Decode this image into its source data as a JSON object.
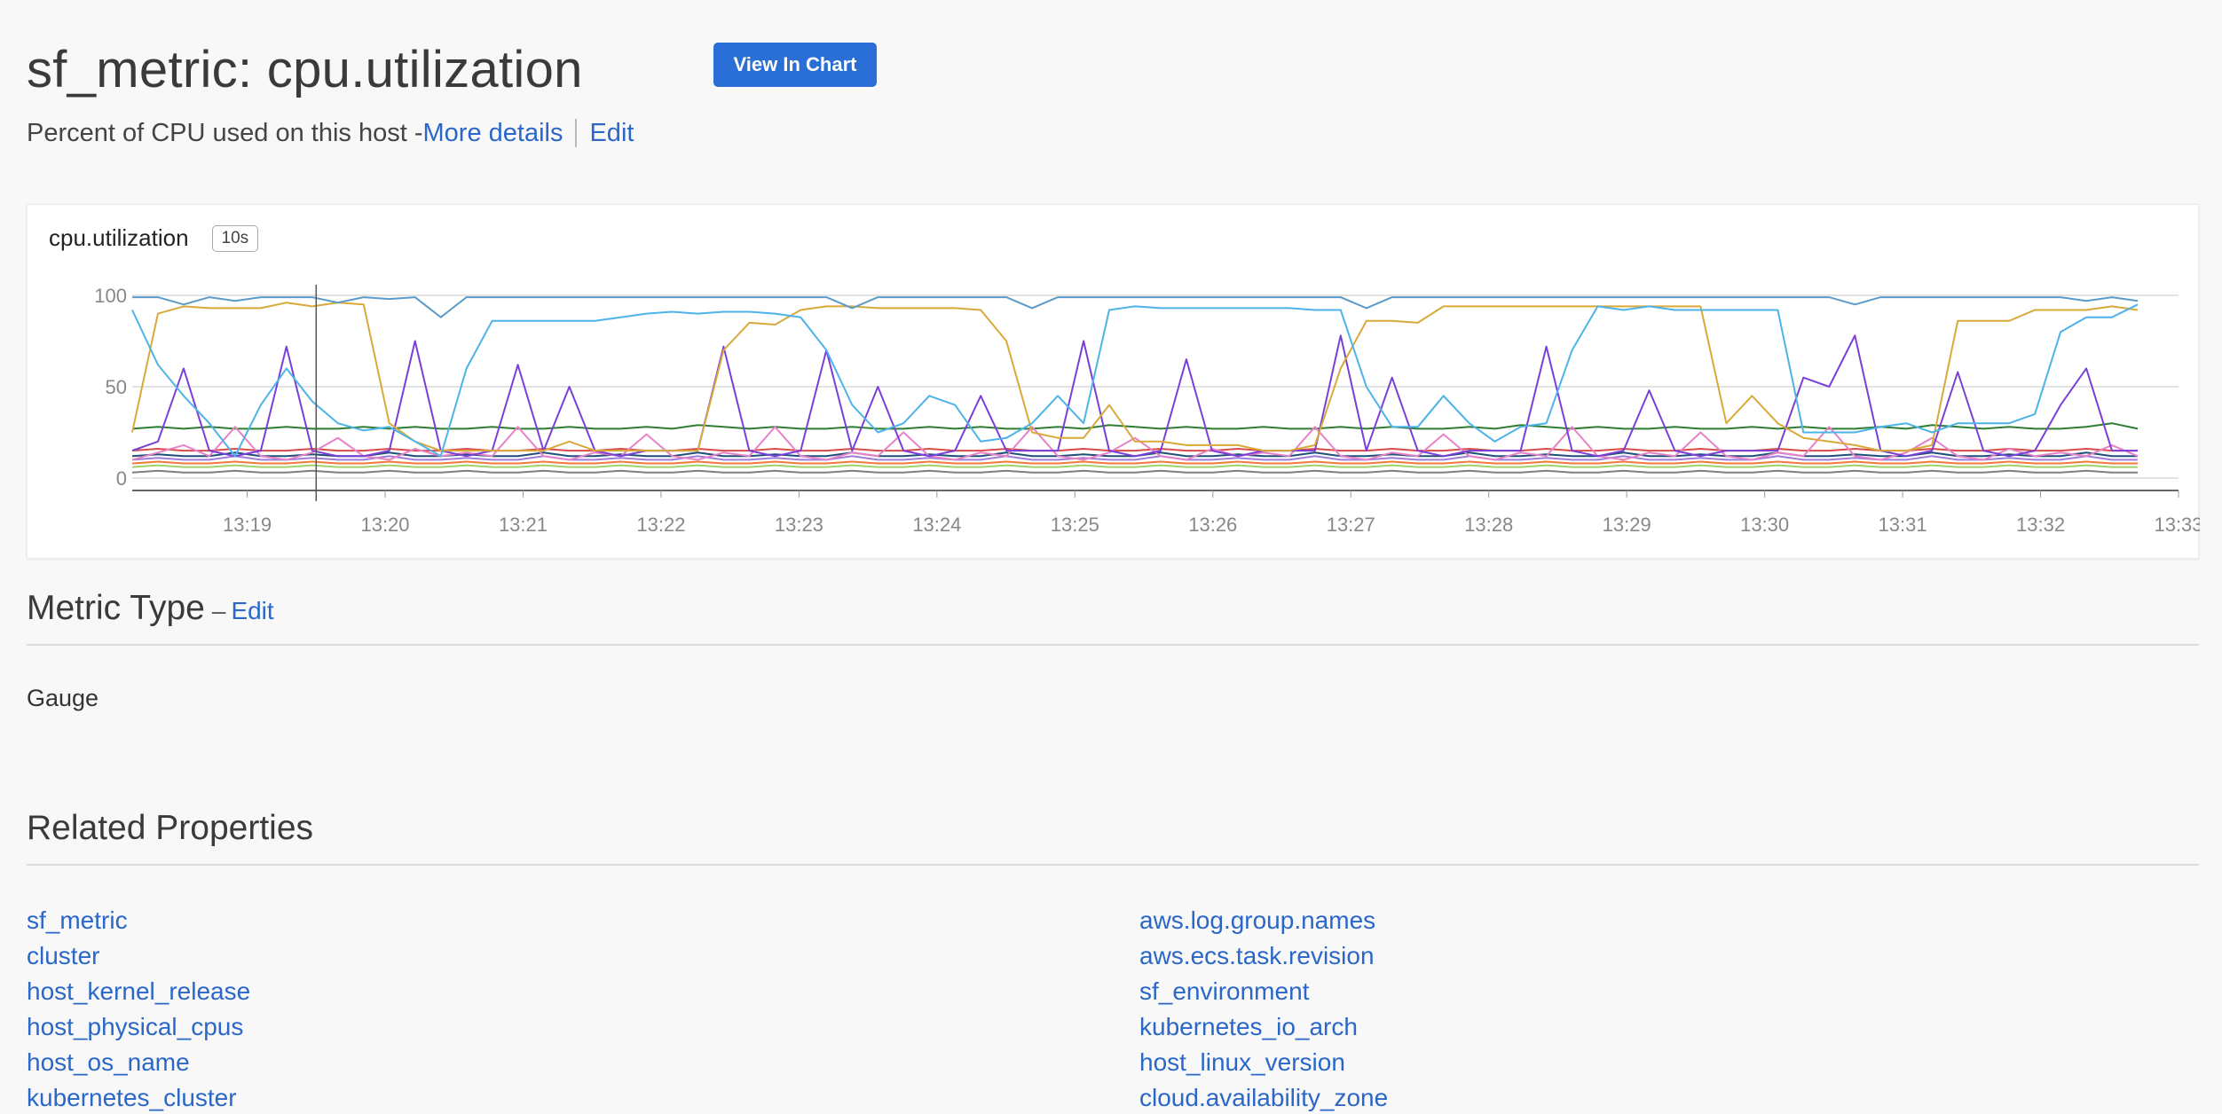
{
  "header": {
    "title": "sf_metric: cpu.utilization",
    "view_in_chart": "View In Chart",
    "description": "Percent of CPU used on this host - ",
    "more_details": "More details",
    "edit": "Edit"
  },
  "chart": {
    "name": "cpu.utilization",
    "resolution": "10s"
  },
  "chart_data": {
    "type": "line",
    "title": "cpu.utilization",
    "ylim": [
      0,
      100
    ],
    "y_ticks": [
      "100",
      "50",
      "0"
    ],
    "x_ticks": [
      "13:19",
      "13:20",
      "13:21",
      "13:22",
      "13:23",
      "13:24",
      "13:25",
      "13:26",
      "13:27",
      "13:28",
      "13:29",
      "13:30",
      "13:31",
      "13:32",
      "13:33"
    ],
    "x_range": [
      "13:18:10",
      "13:33:00"
    ],
    "grid": true,
    "cursor_time": "13:19:30",
    "series_colors": [
      "#4db3e8",
      "#5b9bc9",
      "#d9a93a",
      "#7b3fd9",
      "#e882c8",
      "#2e7d32",
      "#d94b4b",
      "#1f4e79",
      "#a07cd9",
      "#f07a3a",
      "#9fd36b",
      "#7f7f7f"
    ],
    "series": [
      {
        "values": [
          92,
          62,
          45,
          30,
          12,
          40,
          60,
          42,
          30,
          26,
          28,
          20,
          12,
          60,
          86,
          86,
          86,
          86,
          86,
          88,
          90,
          91,
          90,
          91,
          91,
          90,
          88,
          70,
          40,
          25,
          30,
          45,
          40,
          20,
          22,
          30,
          45,
          30,
          92,
          94,
          93,
          93,
          93,
          93,
          93,
          93,
          92,
          92,
          50,
          28,
          28,
          45,
          30,
          20,
          28,
          30,
          70,
          94,
          92,
          94,
          92,
          92,
          92,
          92,
          92,
          25,
          25,
          25,
          28,
          30,
          25,
          30,
          30,
          30,
          35,
          80,
          88,
          88,
          95
        ]
      },
      {
        "values": [
          99,
          99,
          95,
          99,
          97,
          99,
          99,
          99,
          96,
          99,
          98,
          99,
          88,
          99,
          99,
          99,
          99,
          99,
          99,
          99,
          99,
          99,
          99,
          99,
          99,
          99,
          99,
          99,
          93,
          99,
          99,
          99,
          99,
          99,
          99,
          93,
          99,
          99,
          99,
          99,
          99,
          99,
          99,
          99,
          99,
          99,
          99,
          99,
          93,
          99,
          99,
          99,
          99,
          99,
          99,
          99,
          99,
          99,
          99,
          99,
          99,
          99,
          99,
          99,
          99,
          99,
          99,
          95,
          99,
          99,
          99,
          99,
          99,
          99,
          99,
          99,
          97,
          99,
          97
        ]
      },
      {
        "values": [
          25,
          90,
          94,
          93,
          93,
          93,
          96,
          94,
          96,
          95,
          30,
          20,
          15,
          15,
          15,
          15,
          15,
          20,
          15,
          15,
          15,
          15,
          15,
          70,
          85,
          84,
          92,
          94,
          94,
          93,
          93,
          93,
          93,
          92,
          75,
          25,
          22,
          22,
          40,
          20,
          20,
          18,
          18,
          18,
          15,
          15,
          18,
          60,
          86,
          86,
          85,
          94,
          94,
          94,
          94,
          94,
          94,
          94,
          94,
          94,
          94,
          94,
          30,
          45,
          30,
          22,
          20,
          18,
          15,
          15,
          18,
          86,
          86,
          86,
          92,
          92,
          92,
          94,
          92
        ]
      },
      {
        "values": [
          15,
          20,
          60,
          15,
          12,
          15,
          72,
          15,
          12,
          12,
          15,
          75,
          15,
          12,
          15,
          62,
          15,
          50,
          15,
          12,
          15,
          15,
          15,
          72,
          15,
          12,
          15,
          70,
          15,
          50,
          15,
          12,
          15,
          45,
          15,
          15,
          15,
          75,
          15,
          12,
          15,
          65,
          15,
          12,
          15,
          15,
          15,
          78,
          15,
          55,
          15,
          12,
          15,
          15,
          15,
          72,
          15,
          12,
          15,
          48,
          15,
          12,
          15,
          15,
          15,
          55,
          50,
          78,
          15,
          12,
          15,
          58,
          15,
          12,
          15,
          40,
          60,
          15,
          15
        ]
      },
      {
        "values": [
          10,
          14,
          18,
          12,
          28,
          12,
          10,
          14,
          22,
          12,
          10,
          16,
          12,
          14,
          12,
          28,
          12,
          10,
          14,
          12,
          24,
          12,
          10,
          14,
          12,
          28,
          12,
          10,
          14,
          12,
          25,
          12,
          10,
          14,
          12,
          28,
          12,
          10,
          14,
          22,
          12,
          10,
          16,
          12,
          14,
          12,
          28,
          12,
          10,
          14,
          12,
          24,
          12,
          10,
          14,
          12,
          28,
          12,
          10,
          14,
          12,
          25,
          12,
          10,
          14,
          12,
          28,
          12,
          10,
          14,
          22,
          12,
          10,
          16,
          12,
          14,
          12,
          18,
          12
        ]
      },
      {
        "values": [
          27,
          28,
          27,
          28,
          27,
          27,
          28,
          27,
          27,
          28,
          27,
          28,
          27,
          27,
          28,
          27,
          27,
          28,
          27,
          27,
          28,
          27,
          29,
          28,
          27,
          28,
          27,
          27,
          28,
          27,
          27,
          28,
          27,
          28,
          27,
          27,
          28,
          27,
          29,
          28,
          27,
          28,
          27,
          27,
          28,
          27,
          27,
          28,
          27,
          28,
          27,
          27,
          28,
          27,
          29,
          28,
          27,
          28,
          27,
          27,
          28,
          27,
          27,
          28,
          27,
          28,
          27,
          27,
          28,
          27,
          29,
          28,
          27,
          28,
          27,
          27,
          28,
          30,
          27
        ]
      },
      {
        "values": [
          15,
          16,
          15,
          15,
          16,
          15,
          15,
          16,
          15,
          15,
          16,
          15,
          15,
          16,
          15,
          15,
          16,
          15,
          15,
          16,
          15,
          15,
          16,
          15,
          15,
          16,
          15,
          15,
          16,
          15,
          15,
          16,
          15,
          15,
          16,
          15,
          15,
          16,
          15,
          15,
          16,
          15,
          15,
          16,
          15,
          15,
          16,
          15,
          15,
          16,
          15,
          15,
          16,
          15,
          15,
          16,
          15,
          15,
          16,
          15,
          15,
          16,
          15,
          15,
          16,
          15,
          15,
          16,
          15,
          15,
          16,
          15,
          15,
          16,
          15,
          15,
          16,
          15,
          15
        ]
      },
      {
        "values": [
          12,
          13,
          12,
          12,
          14,
          12,
          12,
          13,
          12,
          12,
          14,
          12,
          12,
          13,
          12,
          12,
          14,
          12,
          12,
          13,
          12,
          12,
          14,
          12,
          12,
          13,
          12,
          12,
          14,
          12,
          12,
          13,
          12,
          12,
          14,
          12,
          12,
          13,
          12,
          12,
          14,
          12,
          12,
          13,
          12,
          12,
          14,
          12,
          12,
          13,
          12,
          12,
          14,
          12,
          12,
          13,
          12,
          12,
          14,
          12,
          12,
          13,
          12,
          12,
          14,
          12,
          12,
          13,
          12,
          12,
          14,
          12,
          12,
          13,
          12,
          12,
          14,
          12,
          12
        ]
      },
      {
        "values": [
          10,
          11,
          10,
          10,
          12,
          10,
          10,
          11,
          10,
          10,
          12,
          10,
          10,
          11,
          10,
          10,
          12,
          10,
          10,
          11,
          10,
          10,
          12,
          10,
          10,
          11,
          10,
          10,
          12,
          10,
          10,
          11,
          10,
          10,
          12,
          10,
          10,
          11,
          10,
          10,
          12,
          10,
          10,
          11,
          10,
          10,
          12,
          10,
          10,
          11,
          10,
          10,
          12,
          10,
          10,
          11,
          10,
          10,
          12,
          10,
          10,
          11,
          10,
          10,
          12,
          10,
          10,
          11,
          10,
          10,
          12,
          10,
          10,
          11,
          10,
          10,
          12,
          10,
          10
        ]
      },
      {
        "values": [
          8,
          9,
          8,
          8,
          9,
          8,
          8,
          9,
          8,
          8,
          9,
          8,
          8,
          9,
          8,
          8,
          9,
          8,
          8,
          9,
          8,
          8,
          9,
          8,
          8,
          9,
          8,
          8,
          9,
          8,
          8,
          9,
          8,
          8,
          9,
          8,
          8,
          9,
          8,
          8,
          9,
          8,
          8,
          9,
          8,
          8,
          9,
          8,
          8,
          9,
          8,
          8,
          9,
          8,
          8,
          9,
          8,
          8,
          9,
          8,
          8,
          9,
          8,
          8,
          9,
          8,
          8,
          9,
          8,
          8,
          9,
          8,
          8,
          9,
          8,
          8,
          9,
          8,
          8
        ]
      },
      {
        "values": [
          6,
          7,
          6,
          6,
          7,
          6,
          6,
          7,
          6,
          6,
          7,
          6,
          6,
          7,
          6,
          6,
          7,
          6,
          6,
          7,
          6,
          6,
          7,
          6,
          6,
          7,
          6,
          6,
          7,
          6,
          6,
          7,
          6,
          6,
          7,
          6,
          6,
          7,
          6,
          6,
          7,
          6,
          6,
          7,
          6,
          6,
          7,
          6,
          6,
          7,
          6,
          6,
          7,
          6,
          6,
          7,
          6,
          6,
          7,
          6,
          6,
          7,
          6,
          6,
          7,
          6,
          6,
          7,
          6,
          6,
          7,
          6,
          6,
          7,
          6,
          6,
          7,
          6,
          6
        ]
      },
      {
        "values": [
          3,
          4,
          3,
          3,
          4,
          3,
          3,
          4,
          3,
          3,
          4,
          3,
          3,
          4,
          3,
          3,
          4,
          3,
          3,
          4,
          3,
          3,
          4,
          3,
          3,
          4,
          3,
          3,
          4,
          3,
          3,
          4,
          3,
          3,
          4,
          3,
          3,
          4,
          3,
          3,
          4,
          3,
          3,
          4,
          3,
          3,
          4,
          3,
          3,
          4,
          3,
          3,
          4,
          3,
          3,
          4,
          3,
          3,
          4,
          3,
          3,
          4,
          3,
          3,
          4,
          3,
          3,
          4,
          3,
          3,
          4,
          3,
          3,
          4,
          3,
          3,
          4,
          3,
          3
        ]
      }
    ]
  },
  "metric_type": {
    "heading": "Metric Type",
    "dash": "–",
    "edit": "Edit",
    "value": "Gauge"
  },
  "related": {
    "heading": "Related Properties",
    "left": [
      "sf_metric",
      "cluster",
      "host_kernel_release",
      "host_physical_cpus",
      "host_os_name",
      "kubernetes_cluster"
    ],
    "right": [
      "aws.log.group.names",
      "aws.ecs.task.revision",
      "sf_environment",
      "kubernetes_io_arch",
      "host_linux_version",
      "cloud.availability_zone"
    ]
  }
}
